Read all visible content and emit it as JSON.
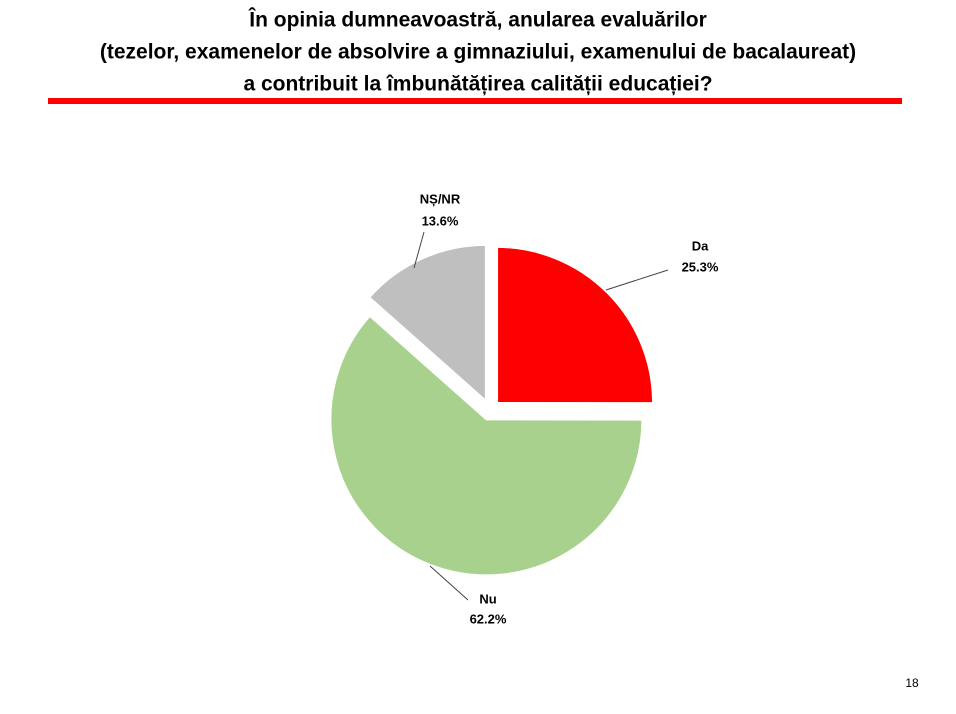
{
  "chart_data": {
    "type": "pie",
    "title": [
      "În opinia dumneavoastră, anularea evaluărilor",
      "(tezelor, examenelor de absolvire a gimnaziului, examenului de bacalaureat)",
      "a contribuit la îmbunătățirea calității educației?"
    ],
    "categories": [
      "Da",
      "Nu",
      "NȘ/NR"
    ],
    "values": [
      25.3,
      62.2,
      13.6
    ],
    "value_labels": [
      "25.3%",
      "62.2%",
      "13.6%"
    ],
    "colors": [
      "#ff0000",
      "#a9d18e",
      "#bfbfbf"
    ]
  },
  "page_number": "18"
}
